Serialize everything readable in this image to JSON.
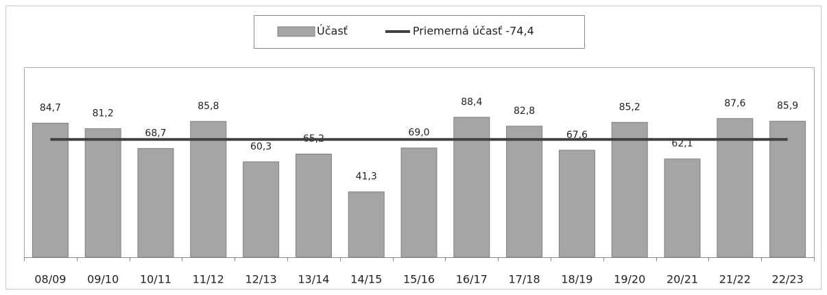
{
  "chart_data": {
    "type": "bar",
    "categories": [
      "08/09",
      "09/10",
      "10/11",
      "11/12",
      "12/13",
      "13/14",
      "14/15",
      "15/16",
      "16/17",
      "17/18",
      "18/19",
      "19/20",
      "20/21",
      "21/22",
      "22/23"
    ],
    "series": [
      {
        "name": "Účasť",
        "type": "bar",
        "color": "#a5a5a5",
        "values": [
          84.7,
          81.2,
          68.7,
          85.8,
          60.3,
          65.2,
          41.3,
          69.0,
          88.4,
          82.8,
          67.6,
          85.2,
          62.1,
          87.6,
          85.9
        ],
        "value_labels": [
          "84,7",
          "81,2",
          "68,7",
          "85,8",
          "60,3",
          "65,2",
          "41,3",
          "69,0",
          "88,4",
          "82,8",
          "67,6",
          "85,2",
          "62,1",
          "87,6",
          "85,9"
        ]
      },
      {
        "name": "Priemerná účasť -74,4",
        "type": "line",
        "color": "#404040",
        "values": [
          74.4,
          74.4,
          74.4,
          74.4,
          74.4,
          74.4,
          74.4,
          74.4,
          74.4,
          74.4,
          74.4,
          74.4,
          74.4,
          74.4,
          74.4
        ]
      }
    ],
    "ylim": [
      0,
      120
    ],
    "legend": "top"
  }
}
